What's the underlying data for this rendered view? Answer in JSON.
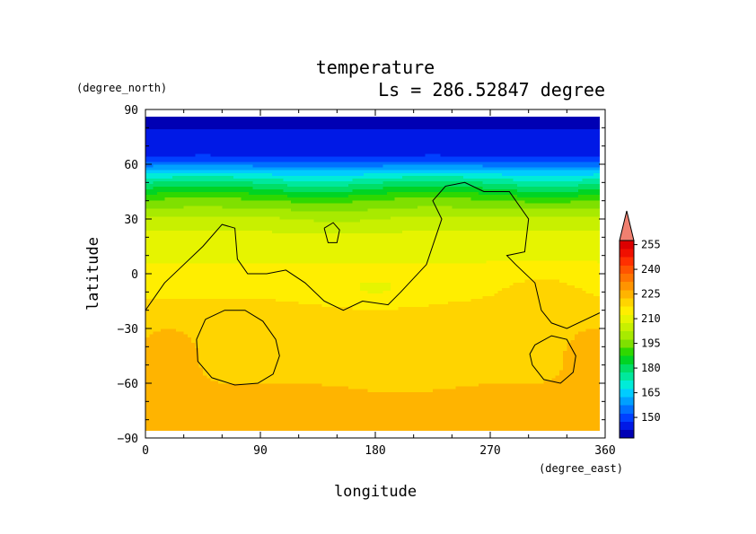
{
  "chart_data": {
    "type": "heatmap",
    "title": "temperature",
    "subtitle": "Ls = 286.52847 degree",
    "xlabel": "longitude",
    "ylabel": "latitude",
    "xunits": "(degree_east)",
    "yunits": "(degree_north)",
    "xlim": [
      0,
      360
    ],
    "ylim": [
      -90,
      90
    ],
    "data_lat_range": [
      -87,
      87
    ],
    "x_ticks": [
      "0",
      "90",
      "180",
      "270",
      "360"
    ],
    "y_ticks": [
      "90",
      "60",
      "30",
      "0",
      "−30",
      "−60",
      "−90"
    ],
    "colorbar": {
      "levels": [
        140,
        145,
        150,
        155,
        160,
        165,
        170,
        175,
        180,
        185,
        190,
        195,
        200,
        205,
        210,
        215,
        220,
        225,
        230,
        235,
        240,
        245,
        250,
        255,
        260
      ],
      "colors": [
        "#0000b4",
        "#0019e6",
        "#0040ff",
        "#0070ff",
        "#00a0ff",
        "#00ccff",
        "#00ecd8",
        "#00e89c",
        "#00de66",
        "#00d424",
        "#2fd800",
        "#7fe000",
        "#a8ea00",
        "#c8f000",
        "#e6f400",
        "#ffee00",
        "#ffd400",
        "#ffb400",
        "#ff9400",
        "#ff7400",
        "#ff5400",
        "#ff3000",
        "#f01000",
        "#dc0000"
      ],
      "labels": [
        "150",
        "165",
        "180",
        "195",
        "210",
        "225",
        "240",
        "255"
      ],
      "overflow_color": "#f08070"
    },
    "profile_lat": [
      -87,
      -80,
      -70,
      -60,
      -50,
      -40,
      -30,
      -20,
      -10,
      0,
      10,
      20,
      30,
      40,
      45,
      50,
      55,
      60,
      65,
      70,
      80,
      87
    ],
    "profile_temp": [
      229,
      229,
      228.5,
      225,
      223.5,
      223,
      222.5,
      222,
      219,
      217,
      214,
      212,
      206,
      196,
      188,
      180,
      170,
      158,
      150,
      147,
      145,
      144
    ],
    "topography_contours": [
      {
        "lon": [
          0,
          15,
          30,
          45,
          60,
          70,
          72,
          80,
          95,
          110,
          125,
          140,
          155,
          170,
          190,
          200,
          220,
          232,
          225,
          235,
          250,
          265,
          285,
          300,
          297,
          283,
          290,
          305,
          310,
          318,
          330,
          345,
          360
        ],
        "lat": [
          -20,
          -5,
          5,
          15,
          27,
          25,
          8,
          0,
          0,
          2,
          -5,
          -15,
          -20,
          -15,
          -17,
          -10,
          5,
          30,
          40,
          48,
          50,
          45,
          45,
          30,
          12,
          10,
          5,
          -5,
          -20,
          -27,
          -30,
          -25,
          -20
        ]
      },
      {
        "lon": [
          140,
          147,
          152,
          150,
          143,
          140
        ],
        "lat": [
          25,
          28,
          24,
          17,
          17,
          25
        ]
      },
      {
        "lon": [
          47,
          62,
          78,
          92,
          102,
          105,
          100,
          88,
          70,
          52,
          41,
          40,
          47
        ],
        "lat": [
          -25,
          -20,
          -20,
          -26,
          -36,
          -45,
          -55,
          -60,
          -61,
          -57,
          -48,
          -36,
          -25
        ]
      },
      {
        "lon": [
          305,
          318,
          330,
          337,
          335,
          325,
          312,
          303,
          301,
          305
        ],
        "lat": [
          -39,
          -34,
          -36,
          -45,
          -54,
          -60,
          -58,
          -50,
          -44,
          -39
        ]
      }
    ]
  }
}
